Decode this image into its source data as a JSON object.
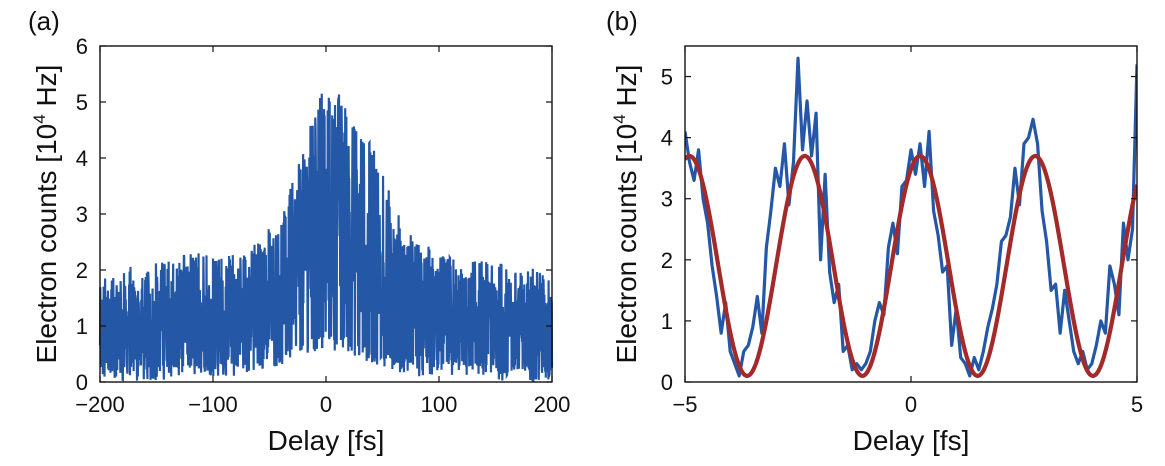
{
  "chart_data": [
    {
      "panel_label": "(a)",
      "type": "line",
      "xlabel": "Delay [fs]",
      "ylabel_main": "Electron counts [10",
      "ylabel_sup": "4",
      "ylabel_end": " Hz]",
      "xlim": [
        -200,
        200
      ],
      "ylim": [
        0,
        6
      ],
      "xticks": [
        -200,
        -100,
        0,
        100,
        200
      ],
      "xtick_labels": [
        "−200",
        "−100",
        "0",
        "100",
        "200"
      ],
      "yticks": [
        0,
        1,
        2,
        3,
        4,
        5,
        6
      ],
      "ytick_labels": [
        "0",
        "1",
        "2",
        "3",
        "4",
        "5",
        "6"
      ],
      "grid": false,
      "series": [
        {
          "color": "#2457a6",
          "style": "noisy raw counts",
          "envelope": {
            "x": [
              -200,
              -160,
              -120,
              -80,
              -60,
              -40,
              -20,
              0,
              20,
              40,
              60,
              80,
              120,
              160,
              200
            ],
            "y_max": [
              2.0,
              2.1,
              2.3,
              2.3,
              2.5,
              3.0,
              4.2,
              5.4,
              5.0,
              4.3,
              3.2,
              2.5,
              2.2,
              2.1,
              2.0
            ],
            "y_min": [
              0.0,
              0.0,
              0.1,
              0.1,
              0.2,
              0.3,
              0.5,
              0.6,
              0.5,
              0.3,
              0.2,
              0.1,
              0.1,
              0.0,
              0.0
            ],
            "y_mean": [
              0.95,
              1.0,
              1.05,
              1.15,
              1.35,
              1.8,
              2.6,
              3.2,
              2.9,
              2.2,
              1.6,
              1.3,
              1.05,
              1.0,
              0.95
            ]
          }
        }
      ]
    },
    {
      "panel_label": "(b)",
      "type": "line",
      "xlabel": "Delay [fs]",
      "ylabel_main": "Electron counts [10",
      "ylabel_sup": "4",
      "ylabel_end": " Hz]",
      "xlim": [
        -5,
        5
      ],
      "ylim": [
        0,
        5.5
      ],
      "xticks": [
        -5,
        0,
        5
      ],
      "xtick_labels": [
        "−5",
        "0",
        "5"
      ],
      "yticks": [
        0,
        1,
        2,
        3,
        4,
        5
      ],
      "ytick_labels": [
        "0",
        "1",
        "2",
        "3",
        "4",
        "5"
      ],
      "grid": false,
      "series": [
        {
          "color": "#2457a6",
          "style": "measured",
          "x": [
            -5.0,
            -4.9,
            -4.8,
            -4.7,
            -4.6,
            -4.5,
            -4.4,
            -4.3,
            -4.2,
            -4.1,
            -4.0,
            -3.9,
            -3.8,
            -3.7,
            -3.6,
            -3.5,
            -3.4,
            -3.3,
            -3.2,
            -3.1,
            -3.0,
            -2.9,
            -2.8,
            -2.7,
            -2.6,
            -2.5,
            -2.4,
            -2.3,
            -2.2,
            -2.1,
            -2.0,
            -1.9,
            -1.8,
            -1.7,
            -1.6,
            -1.5,
            -1.4,
            -1.3,
            -1.2,
            -1.1,
            -1.0,
            -0.9,
            -0.8,
            -0.7,
            -0.6,
            -0.5,
            -0.4,
            -0.3,
            -0.2,
            -0.1,
            0.0,
            0.1,
            0.2,
            0.3,
            0.4,
            0.5,
            0.6,
            0.7,
            0.8,
            0.9,
            1.0,
            1.1,
            1.2,
            1.3,
            1.4,
            1.5,
            1.6,
            1.7,
            1.8,
            1.9,
            2.0,
            2.1,
            2.2,
            2.3,
            2.4,
            2.5,
            2.6,
            2.7,
            2.8,
            2.9,
            3.0,
            3.1,
            3.2,
            3.3,
            3.4,
            3.5,
            3.6,
            3.7,
            3.8,
            3.9,
            4.0,
            4.1,
            4.2,
            4.3,
            4.4,
            4.5,
            4.6,
            4.7,
            4.8,
            4.9,
            5.0
          ],
          "y": [
            4.1,
            3.6,
            3.3,
            3.8,
            3.0,
            2.6,
            1.9,
            1.4,
            0.8,
            1.3,
            0.5,
            0.3,
            0.1,
            0.5,
            0.6,
            0.9,
            1.4,
            0.8,
            2.2,
            2.8,
            3.5,
            3.2,
            3.9,
            2.9,
            3.6,
            5.3,
            3.8,
            4.6,
            3.7,
            4.4,
            2.0,
            3.4,
            1.8,
            1.3,
            1.6,
            0.5,
            0.6,
            0.2,
            0.3,
            0.2,
            0.3,
            0.5,
            1.0,
            1.3,
            1.1,
            2.2,
            2.6,
            2.1,
            3.2,
            3.3,
            3.8,
            3.4,
            3.9,
            3.2,
            4.1,
            2.8,
            2.4,
            1.8,
            1.9,
            0.6,
            1.2,
            0.4,
            0.3,
            0.1,
            0.4,
            0.2,
            0.5,
            0.9,
            1.2,
            1.6,
            2.3,
            2.4,
            2.7,
            3.5,
            2.9,
            3.9,
            4.0,
            4.3,
            3.9,
            2.8,
            2.3,
            1.5,
            1.6,
            0.8,
            1.5,
            1.0,
            0.5,
            0.3,
            0.5,
            0.2,
            0.3,
            0.6,
            1.0,
            0.8,
            1.9,
            1.6,
            1.1,
            2.6,
            2.0,
            2.5,
            5.2
          ]
        },
        {
          "color": "#a32a2a",
          "style": "sinusoidal fit",
          "fit": {
            "offset": 1.9,
            "amplitude": 1.8,
            "period_fs": 2.55,
            "peak_at_fs": 0.2
          }
        }
      ]
    }
  ]
}
